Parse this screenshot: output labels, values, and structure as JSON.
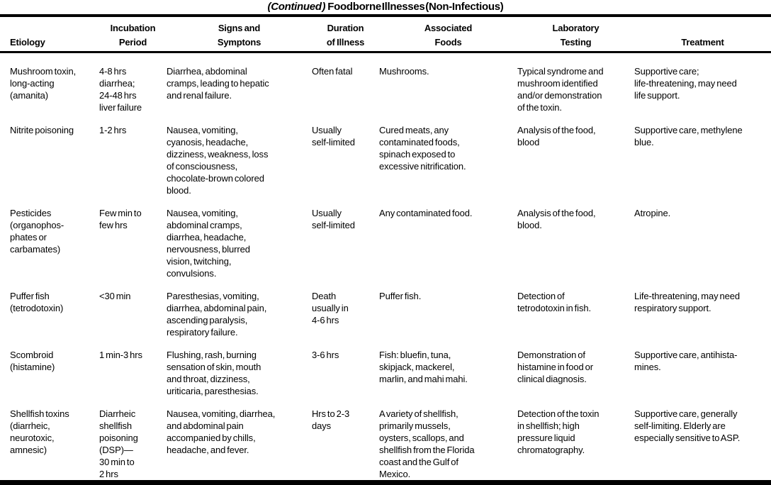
{
  "colors": {
    "text": "#000000",
    "background": "#ffffff",
    "rule": "#000000"
  },
  "title": {
    "continued": "(Continued )",
    "main": "Foodborne Illnesses (Non-Infectious)"
  },
  "columns": [
    {
      "label": "Etiology"
    },
    {
      "label": "Incubation\nPeriod"
    },
    {
      "label": "Signs and\nSymptons"
    },
    {
      "label": "Duration\nof Illness"
    },
    {
      "label": "Associated\nFoods"
    },
    {
      "label": "Laboratory\nTesting"
    },
    {
      "label": "Treatment"
    }
  ],
  "rows": [
    {
      "etiology": "Mushroom toxin,\nlong-acting\n(amanita)",
      "incubation": "4-8 hrs\ndiarrhea;\n24-48 hrs\nliver failure",
      "signs": "Diarrhea, abdominal\ncramps, leading to hepatic\nand renal failure.",
      "duration": "Often fatal",
      "foods": "Mushrooms.",
      "lab": "Typical syndrome and\nmushroom identified\nand/or demonstration\nof the toxin.",
      "treatment": "Supportive care;\nlife-threatening, may need\nlife support."
    },
    {
      "etiology": "Nitrite poisoning",
      "incubation": "1-2 hrs",
      "signs": "Nausea, vomiting,\ncyanosis, headache,\ndizziness, weakness, loss\nof consciousness,\nchocolate-brown colored\nblood.",
      "duration": "Usually\nself-limited",
      "foods": "Cured meats, any\ncontaminated foods,\nspinach exposed to\nexcessive nitrification.",
      "lab": "Analysis of the food,\nblood",
      "treatment": "Supportive care, methylene\nblue."
    },
    {
      "etiology": "Pesticides\n(organophos-\nphates or\ncarbamates)",
      "incubation": "Few min to\nfew hrs",
      "signs": "Nausea, vomiting,\nabdominal cramps,\ndiarrhea, headache,\nnervousness, blurred\nvision, twitching,\nconvulsions.",
      "duration": "Usually\nself-limited",
      "foods": "Any contaminated food.",
      "lab": "Analysis of the food,\nblood.",
      "treatment": "Atropine."
    },
    {
      "etiology": "Puffer fish\n(tetrodotoxin)",
      "incubation": "<30 min",
      "signs": "Paresthesias, vomiting,\ndiarrhea, abdominal pain,\nascending paralysis,\nrespiratory failure.",
      "duration": "Death\nusually in\n4-6 hrs",
      "foods": "Puffer fish.",
      "lab": "Detection of\ntetrodotoxin in fish.",
      "treatment": "Life-threatening, may need\nrespiratory support."
    },
    {
      "etiology": "Scombroid\n(histamine)",
      "incubation": "1 min-3 hrs",
      "signs": "Flushing, rash, burning\nsensation of skin, mouth\nand throat, dizziness,\nuriticaria, paresthesias.",
      "duration": "3-6 hrs",
      "foods": "Fish: bluefin, tuna,\nskipjack, mackerel,\nmarlin, and mahi mahi.",
      "lab": "Demonstration of\nhistamine in food or\nclinical diagnosis.",
      "treatment": "Supportive care, antihista-\nmines."
    },
    {
      "etiology": "Shellfish toxins\n(diarrheic,\nneurotoxic,\namnesic)",
      "incubation": "Diarrheic\nshellfish\npoisoning\n(DSP)—\n30 min to\n2 hrs",
      "signs": "Nausea, vomiting, diarrhea,\nand abdominal pain\naccompanied by chills,\nheadache, and fever.",
      "duration": "Hrs to 2-3\ndays",
      "foods": "A variety of shellfish,\nprimarily mussels,\noysters, scallops, and\nshellfish from the Florida\ncoast and the Gulf of\nMexico.",
      "lab": "Detection of the toxin\nin shellfish; high\npressure liquid\nchromatography.",
      "treatment": "Supportive care, generally\nself-limiting. Elderly are\nespecially sensitive to ASP."
    }
  ]
}
